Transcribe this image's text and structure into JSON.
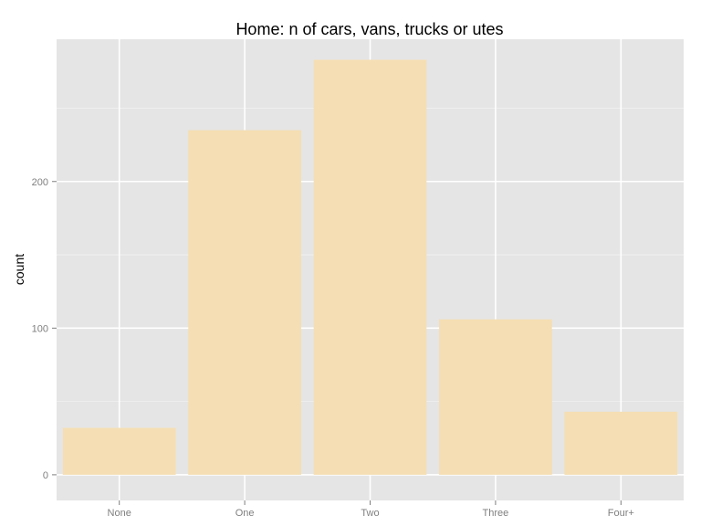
{
  "chart_data": {
    "type": "bar",
    "title": "Home: n of cars, vans, trucks or utes",
    "xlabel": "",
    "ylabel": "count",
    "categories": [
      "None",
      "One",
      "Two",
      "Three",
      "Four+"
    ],
    "values": [
      32,
      235,
      283,
      106,
      43
    ],
    "ylim": [
      -17.5,
      297
    ],
    "yticks": [
      0,
      100,
      200
    ],
    "grid": true,
    "legend": "none",
    "bar_color": "#f5deb3",
    "panel_color": "#e5e5e5",
    "grid_color": "#ffffff",
    "minor_grid_color": "#f2f2f2"
  }
}
